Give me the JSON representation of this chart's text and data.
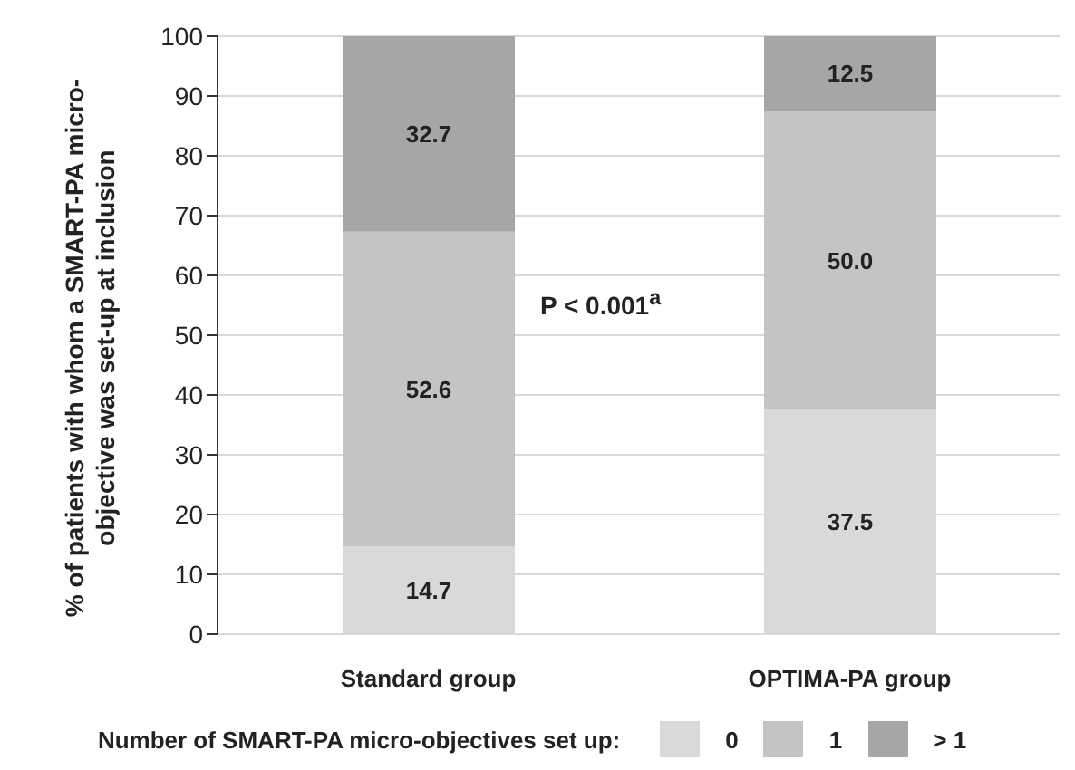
{
  "chart_data": {
    "type": "bar",
    "stacked": true,
    "ylabel": "% of patients  with whom a SMART-PA micro-objective was set-up at inclusion",
    "legend_title": "Number of SMART-PA micro-objectives set up:",
    "categories": [
      "Standard group",
      "OPTIMA-PA group"
    ],
    "series": [
      {
        "name": "0",
        "color": "#d9d9d9",
        "values": [
          14.7,
          37.5
        ],
        "value_labels": [
          "14.7",
          "37.5"
        ]
      },
      {
        "name": "1",
        "color": "#c4c4c4",
        "values": [
          52.6,
          50.0
        ],
        "value_labels": [
          "52.6",
          "50.0"
        ]
      },
      {
        "name": "> 1",
        "color": "#a6a6a6",
        "values": [
          32.7,
          12.5
        ],
        "value_labels": [
          "32.7",
          "12.5"
        ]
      }
    ],
    "ylim": [
      0,
      100
    ],
    "yticks": [
      0,
      10,
      20,
      30,
      40,
      50,
      60,
      70,
      80,
      90,
      100
    ],
    "grid": "y",
    "legend": "bottom",
    "annotations": [
      "P < 0.001$^{a}$"
    ]
  }
}
